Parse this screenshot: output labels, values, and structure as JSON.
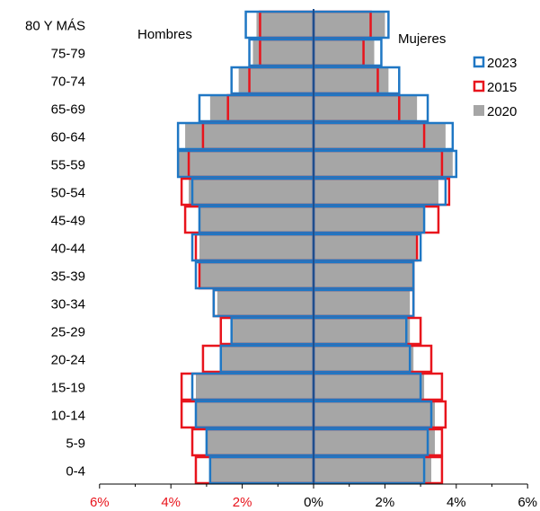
{
  "chart_data": {
    "type": "bar",
    "orientation": "population-pyramid",
    "categories": [
      "80 Y MÁS",
      "75-79",
      "70-74",
      "65-69",
      "60-64",
      "55-59",
      "50-54",
      "45-49",
      "40-44",
      "35-39",
      "30-34",
      "25-29",
      "20-24",
      "15-19",
      "10-14",
      "5-9",
      "0-4"
    ],
    "side_labels": {
      "left": "Hombres",
      "right": "Mujeres"
    },
    "xlim": [
      -6,
      6
    ],
    "x_ticks": [
      {
        "value": -6,
        "label": "6%"
      },
      {
        "value": -4,
        "label": "4%"
      },
      {
        "value": -2,
        "label": "2%"
      },
      {
        "value": 0,
        "label": "0%"
      },
      {
        "value": 2,
        "label": "2%"
      },
      {
        "value": 4,
        "label": "4%"
      },
      {
        "value": 6,
        "label": "6%"
      }
    ],
    "negative_tick_color": "#e8141c",
    "positive_tick_color": "#000000",
    "legend_position": "right",
    "series": [
      {
        "name": "2020",
        "style": "filled",
        "color": "#a6a6a6",
        "hombres": [
          1.6,
          1.7,
          2.1,
          2.9,
          3.6,
          3.8,
          3.5,
          3.2,
          3.2,
          3.2,
          2.7,
          2.3,
          2.6,
          3.3,
          3.3,
          3.0,
          2.9
        ],
        "mujeres": [
          2.0,
          1.7,
          2.1,
          2.9,
          3.7,
          3.9,
          3.5,
          3.1,
          2.9,
          2.8,
          2.7,
          2.7,
          2.8,
          3.1,
          3.4,
          3.4,
          3.3
        ]
      },
      {
        "name": "2015",
        "style": "outline",
        "color": "#e8141c",
        "hombres": [
          1.5,
          1.5,
          1.8,
          2.4,
          3.1,
          3.5,
          3.7,
          3.6,
          3.3,
          3.2,
          2.8,
          2.6,
          3.1,
          3.7,
          3.7,
          3.4,
          3.3
        ],
        "mujeres": [
          1.6,
          1.4,
          1.8,
          2.4,
          3.1,
          3.6,
          3.8,
          3.5,
          2.9,
          2.8,
          2.8,
          3.0,
          3.3,
          3.6,
          3.7,
          3.6,
          3.6
        ]
      },
      {
        "name": "2023",
        "style": "outline",
        "color": "#1f77c4",
        "hombres": [
          1.9,
          1.8,
          2.3,
          3.2,
          3.8,
          3.8,
          3.4,
          3.2,
          3.4,
          3.3,
          2.8,
          2.3,
          2.6,
          3.4,
          3.3,
          3.0,
          2.9
        ],
        "mujeres": [
          2.1,
          1.9,
          2.4,
          3.2,
          3.9,
          4.0,
          3.7,
          3.1,
          3.0,
          2.8,
          2.8,
          2.6,
          2.7,
          3.0,
          3.3,
          3.2,
          3.1
        ]
      }
    ],
    "legend_order": [
      "2023",
      "2015",
      "2020"
    ]
  }
}
